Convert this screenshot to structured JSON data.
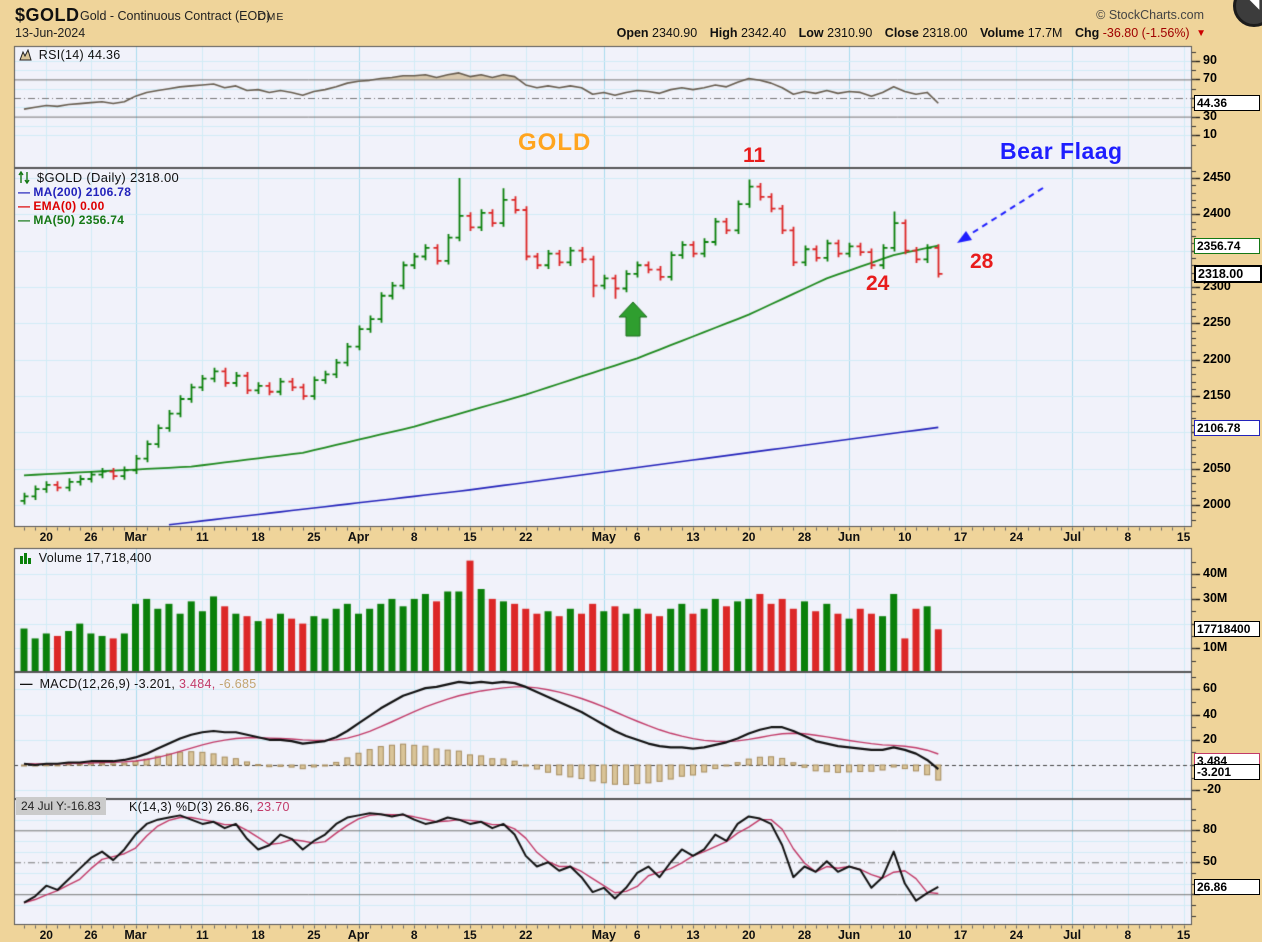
{
  "header": {
    "symbol": "$GOLD",
    "description": "Gold - Continuous Contract (EOD)",
    "exchange": "CME",
    "date": "13-Jun-2024",
    "credit": "© StockCharts.com",
    "quote": {
      "open_label": "Open",
      "open": "2340.90",
      "high_label": "High",
      "high": "2342.40",
      "low_label": "Low",
      "low": "2310.90",
      "close_label": "Close",
      "close": "2318.00",
      "volume_label": "Volume",
      "volume": "17.7M",
      "chg_label": "Chg",
      "chg": "-36.80 (-1.56%)",
      "chg_arrow": "▼"
    }
  },
  "panels": {
    "rsi": {
      "legend": "RSI(14) 44.36",
      "value_box": "44.36",
      "ticks": [
        {
          "v": 90,
          "t": "90"
        },
        {
          "v": 70,
          "t": "70"
        },
        {
          "v": 30,
          "t": "30"
        },
        {
          "v": 10,
          "t": "10"
        }
      ]
    },
    "price": {
      "legend_title": "$GOLD (Daily) 2318.00",
      "legend_ma200": "MA(200) 2106.78",
      "legend_ema": "EMA(0) 0.00",
      "legend_ma50": "MA(50) 2356.74",
      "boxes": {
        "ma50": "2356.74",
        "close": "2318.00",
        "ma200": "2106.78"
      },
      "ticks": [
        {
          "v": 2450,
          "t": "2450"
        },
        {
          "v": 2400,
          "t": "2400"
        },
        {
          "v": 2300,
          "t": "2300"
        },
        {
          "v": 2250,
          "t": "2250"
        },
        {
          "v": 2200,
          "t": "2200"
        },
        {
          "v": 2150,
          "t": "2150"
        },
        {
          "v": 2050,
          "t": "2050"
        },
        {
          "v": 2000,
          "t": "2000"
        }
      ],
      "annotations": {
        "gold": "GOLD",
        "peak": "11",
        "bear_flag": "Bear Flaag",
        "low_label": "24",
        "last_label": "28"
      }
    },
    "volume": {
      "legend": "Volume 17,718,400",
      "value_box": "17718400",
      "ticks": [
        {
          "v": 40,
          "t": "40M"
        },
        {
          "v": 30,
          "t": "30M"
        },
        {
          "v": 10,
          "t": "10M"
        }
      ]
    },
    "macd": {
      "legend_name": "MACD(12,26,9)",
      "macd_value": "-3.201,",
      "signal_value": "3.484,",
      "hist_value": "-6.685",
      "boxes": {
        "signal": "3.484",
        "macd": "-3.201"
      },
      "ticks": [
        {
          "v": 60,
          "t": "60"
        },
        {
          "v": 40,
          "t": "40"
        },
        {
          "v": 20,
          "t": "20"
        },
        {
          "v": -20,
          "t": "-20"
        }
      ]
    },
    "stoch": {
      "tooltip": "24 Jul Y:-16.83",
      "legend_name": "K(14,3) %D(3)",
      "k_value": "26.86,",
      "d_value": "23.70",
      "value_box": "26.86",
      "ticks": [
        {
          "v": 80,
          "t": "80"
        },
        {
          "v": 50,
          "t": "50"
        }
      ]
    }
  },
  "xaxis": {
    "labels": [
      {
        "t": "20",
        "i": 2
      },
      {
        "t": "26",
        "i": 6
      },
      {
        "t": "Mar",
        "i": 10,
        "b": 1
      },
      {
        "t": "11",
        "i": 16
      },
      {
        "t": "18",
        "i": 21
      },
      {
        "t": "25",
        "i": 26
      },
      {
        "t": "Apr",
        "i": 30,
        "b": 1
      },
      {
        "t": "8",
        "i": 35
      },
      {
        "t": "15",
        "i": 40
      },
      {
        "t": "22",
        "i": 45
      },
      {
        "t": "May",
        "i": 52,
        "b": 1
      },
      {
        "t": "6",
        "i": 55
      },
      {
        "t": "13",
        "i": 60
      },
      {
        "t": "20",
        "i": 65
      },
      {
        "t": "28",
        "i": 70
      },
      {
        "t": "Jun",
        "i": 74,
        "b": 1
      },
      {
        "t": "10",
        "i": 79
      },
      {
        "t": "17",
        "i": 84
      },
      {
        "t": "24",
        "i": 89
      },
      {
        "t": "Jul",
        "i": 94,
        "b": 1
      },
      {
        "t": "8",
        "i": 99
      },
      {
        "t": "15",
        "i": 104
      }
    ]
  },
  "colors": {
    "page_bg": "#efd49a",
    "panel_bg": "#f1f2fa",
    "grid_light": "#d2ecf6",
    "grid_month": "#a9dcee",
    "grid_gray": "#777777",
    "candle_up": "#0a800a",
    "candle_down": "#dc2727",
    "ma50": "#1f8a1f",
    "ma200": "#2323bb",
    "rsi_line": "#675d4f",
    "rsi_fill": "rgba(200,173,127,0.6)",
    "macd_line": "#111111",
    "signal_line": "#c23a68",
    "hist_fill": "#d9c498",
    "hist_stroke": "#a68c5d",
    "ann_orange": "#ffa51f",
    "ann_red": "#e81c1c",
    "ann_blue": "#1e1eff",
    "arrow_green": "#2f9e2f"
  },
  "chart_data": [
    {
      "type": "line",
      "panel": "rsi",
      "title": "RSI(14)",
      "ylim": [
        0,
        100
      ],
      "levels": {
        "overbought": 70,
        "mid": 50,
        "oversold": 30
      },
      "values": [
        38,
        40,
        42,
        41,
        43,
        44,
        45,
        46,
        44,
        46,
        52,
        56,
        58,
        60,
        62,
        63,
        64,
        65,
        61,
        63,
        58,
        59,
        56,
        58,
        56,
        53,
        57,
        59,
        62,
        66,
        68,
        69,
        71,
        72,
        74,
        74,
        75,
        72,
        75,
        77,
        73,
        75,
        72,
        75,
        73,
        64,
        61,
        63,
        61,
        63,
        61,
        54,
        56,
        53,
        56,
        58,
        57,
        55,
        59,
        61,
        59,
        61,
        64,
        62,
        67,
        71,
        69,
        66,
        61,
        54,
        57,
        55,
        58,
        55,
        57,
        56,
        52,
        56,
        62,
        57,
        54,
        56,
        44.36
      ]
    },
    {
      "type": "ohlc",
      "panel": "price",
      "title": "$GOLD Daily",
      "ylim": [
        1970,
        2460
      ],
      "closes": [
        2012,
        2022,
        2028,
        2024,
        2032,
        2036,
        2042,
        2046,
        2040,
        2048,
        2064,
        2084,
        2106,
        2126,
        2146,
        2162,
        2174,
        2184,
        2168,
        2178,
        2158,
        2164,
        2156,
        2170,
        2162,
        2150,
        2172,
        2180,
        2196,
        2218,
        2242,
        2256,
        2288,
        2302,
        2330,
        2342,
        2354,
        2336,
        2368,
        2398,
        2382,
        2402,
        2388,
        2420,
        2406,
        2342,
        2330,
        2346,
        2334,
        2350,
        2338,
        2302,
        2312,
        2298,
        2318,
        2330,
        2324,
        2314,
        2344,
        2358,
        2346,
        2362,
        2390,
        2378,
        2414,
        2438,
        2424,
        2408,
        2378,
        2334,
        2352,
        2340,
        2360,
        2346,
        2356,
        2348,
        2330,
        2354,
        2388,
        2350,
        2338,
        2354,
        2318
      ],
      "high_overrides": {
        "39": 2450,
        "43": 2436,
        "65": 2448,
        "78": 2404
      },
      "low_overrides": {
        "51": 2286,
        "53": 2284
      },
      "ma50": [
        [
          0,
          2041
        ],
        [
          15,
          2053
        ],
        [
          25,
          2072
        ],
        [
          35,
          2108
        ],
        [
          45,
          2152
        ],
        [
          55,
          2202
        ],
        [
          65,
          2262
        ],
        [
          72,
          2312
        ],
        [
          78,
          2344
        ],
        [
          82,
          2357
        ]
      ],
      "ma200": [
        [
          13,
          1973
        ],
        [
          40,
          2021
        ],
        [
          60,
          2062
        ],
        [
          82,
          2107
        ]
      ]
    },
    {
      "type": "bar",
      "panel": "volume",
      "title": "Volume",
      "unit": "millions",
      "values": [
        18,
        14,
        16,
        15,
        17,
        20,
        16,
        15,
        14,
        16,
        28,
        30,
        26,
        28,
        24,
        29,
        25,
        31,
        27,
        24,
        23,
        21,
        22,
        24,
        22,
        20,
        23,
        22,
        26,
        28,
        24,
        26,
        28,
        30,
        27,
        30,
        32,
        29,
        33,
        33,
        45.5,
        34,
        30,
        29,
        28,
        26,
        24,
        25,
        23,
        26,
        24,
        28,
        25,
        27,
        24,
        26,
        24,
        23,
        26,
        28,
        24,
        26,
        30,
        27,
        29,
        30,
        32,
        28,
        30,
        26,
        29,
        25,
        28,
        24,
        22,
        26,
        24,
        23,
        32,
        14,
        26,
        27,
        17.7
      ]
    },
    {
      "type": "line",
      "panel": "macd",
      "title": "MACD(12,26,9)",
      "ylim": [
        -30,
        70
      ],
      "signal_period": 9,
      "macd": [
        1,
        0,
        1,
        1,
        2,
        2,
        3,
        3,
        3,
        4,
        6,
        9,
        13,
        17,
        21,
        24,
        26,
        27,
        26,
        26,
        24,
        22,
        20,
        20,
        19,
        17,
        18,
        19,
        22,
        27,
        33,
        39,
        45,
        50,
        55,
        58,
        61,
        62,
        64,
        66,
        65,
        66,
        65,
        66,
        65,
        62,
        58,
        54,
        50,
        46,
        42,
        37,
        32,
        27,
        23,
        20,
        17,
        15,
        14,
        14,
        13,
        14,
        16,
        18,
        21,
        25,
        28,
        30,
        30,
        27,
        23,
        19,
        17,
        15,
        14,
        13,
        12,
        12,
        14,
        12,
        9,
        4,
        -3.2
      ]
    },
    {
      "type": "line",
      "panel": "stoch",
      "title": "Slow STO %K(14,3) %D(3)",
      "ylim": [
        0,
        100
      ],
      "d_period": 3,
      "levels": {
        "overbought": 80,
        "mid": 50,
        "oversold": 20
      },
      "k": [
        12,
        18,
        28,
        24,
        34,
        44,
        54,
        60,
        52,
        62,
        76,
        86,
        90,
        92,
        94,
        90,
        86,
        88,
        82,
        86,
        72,
        62,
        66,
        76,
        72,
        62,
        70,
        76,
        86,
        92,
        94,
        96,
        95,
        93,
        95,
        90,
        86,
        88,
        92,
        90,
        86,
        88,
        82,
        86,
        76,
        56,
        46,
        50,
        42,
        46,
        36,
        22,
        26,
        16,
        26,
        40,
        46,
        36,
        50,
        62,
        56,
        62,
        76,
        70,
        86,
        93,
        91,
        86,
        66,
        36,
        46,
        41,
        51,
        41,
        46,
        43,
        26,
        36,
        60,
        30,
        14,
        21,
        26.86
      ]
    }
  ]
}
